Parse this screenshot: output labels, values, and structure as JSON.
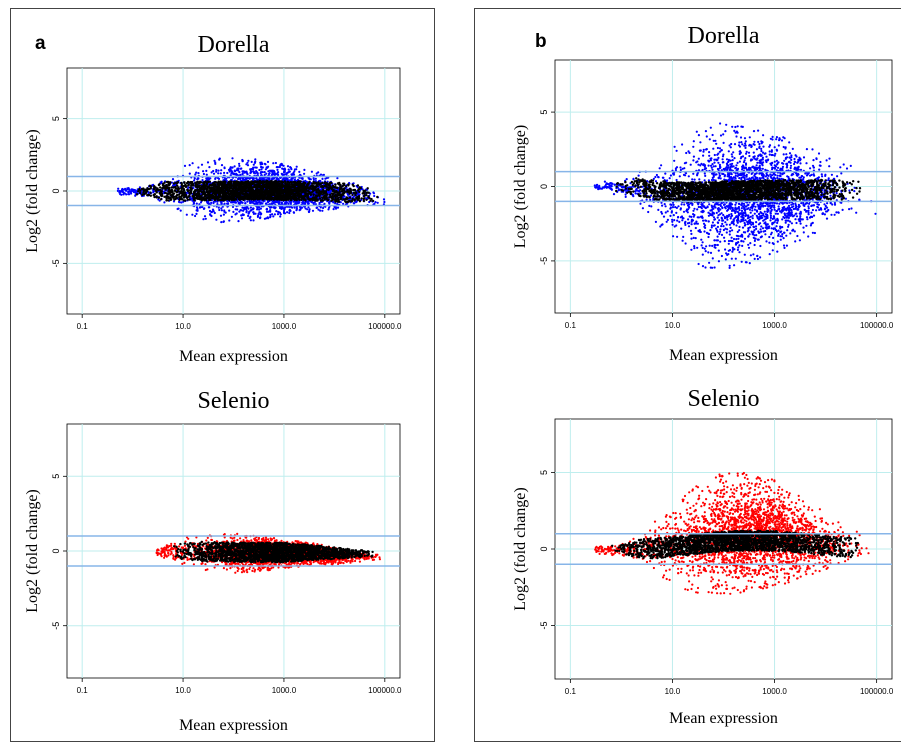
{
  "panels": {
    "a": "a",
    "b": "b"
  },
  "chart_data": [
    {
      "panel": "a",
      "type": "scatter",
      "title": "Dorella",
      "xlabel": "Mean expression",
      "ylabel": "Log2 (fold change)",
      "xscale": "log",
      "xlim": [
        0.05,
        200000
      ],
      "ylim": [
        -8.5,
        8.5
      ],
      "xticks": [
        0.1,
        10.0,
        1000.0,
        100000.0
      ],
      "xtick_labels": [
        "0.1",
        "10.0",
        "1000.0",
        "100000.0"
      ],
      "yticks": [
        5,
        0,
        -5
      ],
      "ytick_labels": [
        "5",
        "0",
        "-5"
      ],
      "hlines": [
        1,
        -1
      ],
      "grid": true,
      "highlight_color": "#0000ff",
      "base_color": "#000000",
      "series": [
        {
          "x": [
            0.5,
            2,
            3,
            5,
            8,
            10,
            20,
            50,
            100,
            300,
            1000,
            3000,
            10000,
            30000,
            100000,
            150000
          ],
          "y_upper": [
            0.3,
            0.55,
            0.75,
            1.1,
            1.5,
            1.7,
            2.1,
            2.3,
            2.3,
            2.2,
            1.9,
            1.5,
            1.0,
            0.5,
            -0.4,
            -0.8
          ],
          "y_lower": [
            -0.3,
            -0.55,
            -0.75,
            -1.1,
            -1.5,
            -1.8,
            -2.1,
            -2.3,
            -2.2,
            -2.0,
            -1.8,
            -1.5,
            -1.3,
            -1.2,
            -1.2,
            -1.2
          ]
        }
      ]
    },
    {
      "panel": "a",
      "type": "scatter",
      "title": "Selenio",
      "xlabel": "Mean expression",
      "ylabel": "Log2 (fold change)",
      "xscale": "log",
      "xlim": [
        0.05,
        200000
      ],
      "ylim": [
        -8.5,
        8.5
      ],
      "xticks": [
        0.1,
        10.0,
        1000.0,
        100000.0
      ],
      "xtick_labels": [
        "0.1",
        "10.0",
        "1000.0",
        "100000.0"
      ],
      "yticks": [
        5,
        0,
        -5
      ],
      "ytick_labels": [
        "5",
        "0",
        "-5"
      ],
      "hlines": [
        1,
        -1
      ],
      "grid": true,
      "highlight_color": "#ff0000",
      "base_color": "#000000",
      "series": [
        {
          "x": [
            3,
            5,
            10,
            30,
            100,
            300,
            1000,
            3000,
            10000,
            50000,
            120000
          ],
          "y_upper": [
            0.3,
            0.5,
            0.9,
            1.1,
            1.2,
            1.0,
            0.8,
            0.6,
            0.3,
            -0.1,
            -0.3
          ],
          "y_lower": [
            -0.4,
            -0.6,
            -0.9,
            -1.3,
            -1.5,
            -1.4,
            -1.2,
            -1.0,
            -0.9,
            -0.7,
            -0.6
          ]
        }
      ]
    },
    {
      "panel": "b",
      "type": "scatter",
      "title": "Dorella",
      "xlabel": "Mean expression",
      "ylabel": "Log2 (fold change)",
      "xscale": "log",
      "xlim": [
        0.05,
        200000
      ],
      "ylim": [
        -8.5,
        8.5
      ],
      "xticks": [
        0.1,
        10.0,
        1000.0,
        100000.0
      ],
      "xtick_labels": [
        "0.1",
        "10.0",
        "1000.0",
        "100000.0"
      ],
      "yticks": [
        5,
        0,
        -5
      ],
      "ytick_labels": [
        "5",
        "0",
        "-5"
      ],
      "hlines": [
        1,
        -1
      ],
      "grid": true,
      "highlight_color": "#0000ff",
      "base_color": "#000000",
      "series": [
        {
          "x": [
            0.3,
            1,
            2,
            3,
            5,
            10,
            20,
            50,
            100,
            300,
            1000,
            3000,
            10000,
            30000,
            100000
          ],
          "y_upper": [
            0.3,
            0.5,
            0.9,
            1.2,
            1.6,
            2.6,
            3.5,
            4.2,
            4.4,
            4.1,
            3.6,
            2.9,
            2.2,
            1.5,
            0.5
          ],
          "y_lower": [
            -0.3,
            -0.6,
            -1.2,
            -1.8,
            -2.6,
            -3.9,
            -5.0,
            -5.6,
            -5.6,
            -5.2,
            -4.5,
            -3.8,
            -3.0,
            -2.5,
            -2.0
          ]
        }
      ]
    },
    {
      "panel": "b",
      "type": "scatter",
      "title": "Selenio",
      "xlabel": "Mean expression",
      "ylabel": "Log2 (fold change)",
      "xscale": "log",
      "xlim": [
        0.05,
        200000
      ],
      "ylim": [
        -8.5,
        8.5
      ],
      "xticks": [
        0.1,
        10.0,
        1000.0,
        100000.0
      ],
      "xtick_labels": [
        "0.1",
        "10.0",
        "1000.0",
        "100000.0"
      ],
      "yticks": [
        5,
        0,
        -5
      ],
      "ytick_labels": [
        "5",
        "0",
        "-5"
      ],
      "hlines": [
        1,
        -1
      ],
      "grid": true,
      "highlight_color": "#ff0000",
      "base_color": "#000000",
      "series": [
        {
          "x": [
            0.3,
            1,
            2,
            3,
            5,
            10,
            20,
            50,
            100,
            300,
            1000,
            3000,
            10000,
            30000,
            100000
          ],
          "y_upper": [
            0.2,
            0.4,
            0.8,
            1.3,
            2.0,
            3.0,
            3.8,
            4.6,
            5.0,
            5.0,
            4.6,
            3.6,
            2.4,
            1.4,
            0.6
          ],
          "y_lower": [
            -0.3,
            -0.5,
            -0.9,
            -1.3,
            -1.8,
            -2.4,
            -2.8,
            -3.0,
            -3.0,
            -2.8,
            -2.5,
            -2.0,
            -1.5,
            -1.0,
            -0.6
          ]
        }
      ]
    }
  ]
}
